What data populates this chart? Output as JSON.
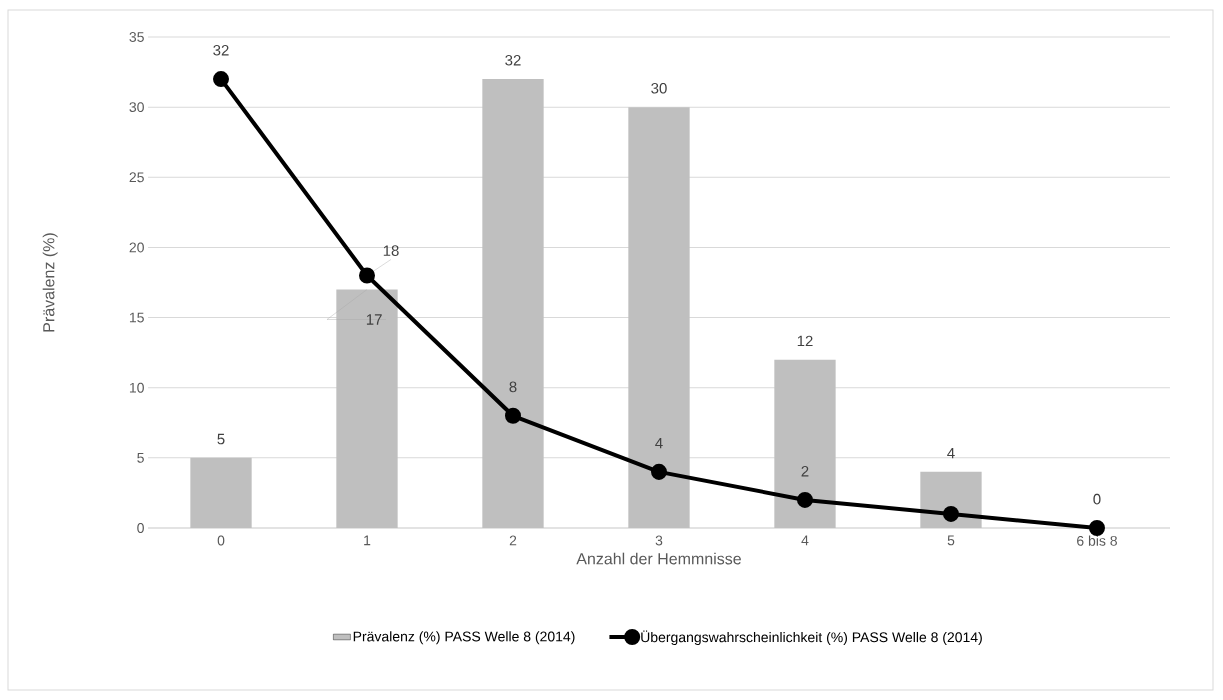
{
  "chart_data": {
    "type": "bar",
    "xlabel": "Anzahl der Hemmnisse",
    "ylabel": "Prävalenz (%)",
    "categories": [
      "0",
      "1",
      "2",
      "3",
      "4",
      "5",
      "6 bis 8"
    ],
    "ylim": [
      0,
      35
    ],
    "yticks": [
      0,
      5,
      10,
      15,
      20,
      25,
      30,
      35
    ],
    "grid": "y",
    "legend": "bottom",
    "marker": "circle",
    "series": [
      {
        "name": "Prävalenz (%) PASS Welle 8 (2014)",
        "color": "#bfbfbf",
        "values": [
          5,
          17,
          32,
          30,
          12,
          4,
          null
        ],
        "value_labels": [
          "5",
          "17",
          "32",
          "30",
          "12",
          "4",
          null
        ]
      },
      {
        "name": "Übergangswahrscheinlichkeit (%) PASS Welle 8 (2014)",
        "type": "line",
        "color": "#000000",
        "values": [
          32,
          18,
          8,
          4,
          2,
          1,
          0
        ],
        "value_labels": [
          "32",
          "18",
          "8",
          "4",
          "2",
          null,
          "0"
        ]
      }
    ]
  }
}
